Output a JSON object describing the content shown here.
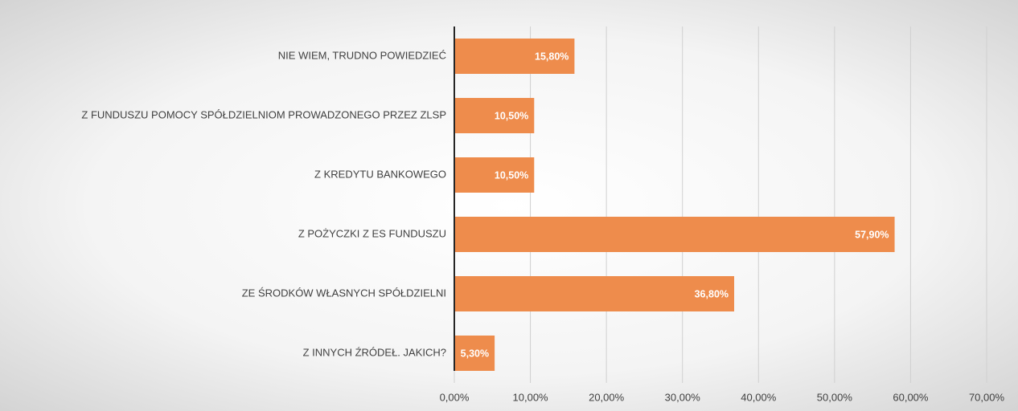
{
  "chart_data": {
    "type": "bar",
    "orientation": "horizontal",
    "categories": [
      "NIE WIEM, TRUDNO POWIEDZIEĆ",
      "Z FUNDUSZU POMOCY SPÓŁDZIELNIOM PROWADZONEGO PRZEZ ZLSP",
      "Z KREDYTU BANKOWEGO",
      "Z POŻYCZKI Z ES FUNDUSZU",
      "ZE ŚRODKÓW WŁASNYCH SPÓŁDZIELNI",
      "Z INNYCH ŹRÓDEŁ. JAKICH?"
    ],
    "values": [
      15.8,
      10.5,
      10.5,
      57.9,
      36.8,
      5.3
    ],
    "value_labels": [
      "15,80%",
      "10,50%",
      "10,50%",
      "57,90%",
      "36,80%",
      "5,30%"
    ],
    "color": "#ee8c4c",
    "xlim": [
      0,
      70
    ],
    "xticks": [
      {
        "value": 0,
        "label": "0,00%"
      },
      {
        "value": 10,
        "label": "10,00%"
      },
      {
        "value": 20,
        "label": "20,00%"
      },
      {
        "value": 30,
        "label": "30,00%"
      },
      {
        "value": 40,
        "label": "40,00%"
      },
      {
        "value": 50,
        "label": "50,00%"
      },
      {
        "value": 60,
        "label": "60,00%"
      },
      {
        "value": 70,
        "label": "70,00%"
      }
    ],
    "grid": true
  }
}
